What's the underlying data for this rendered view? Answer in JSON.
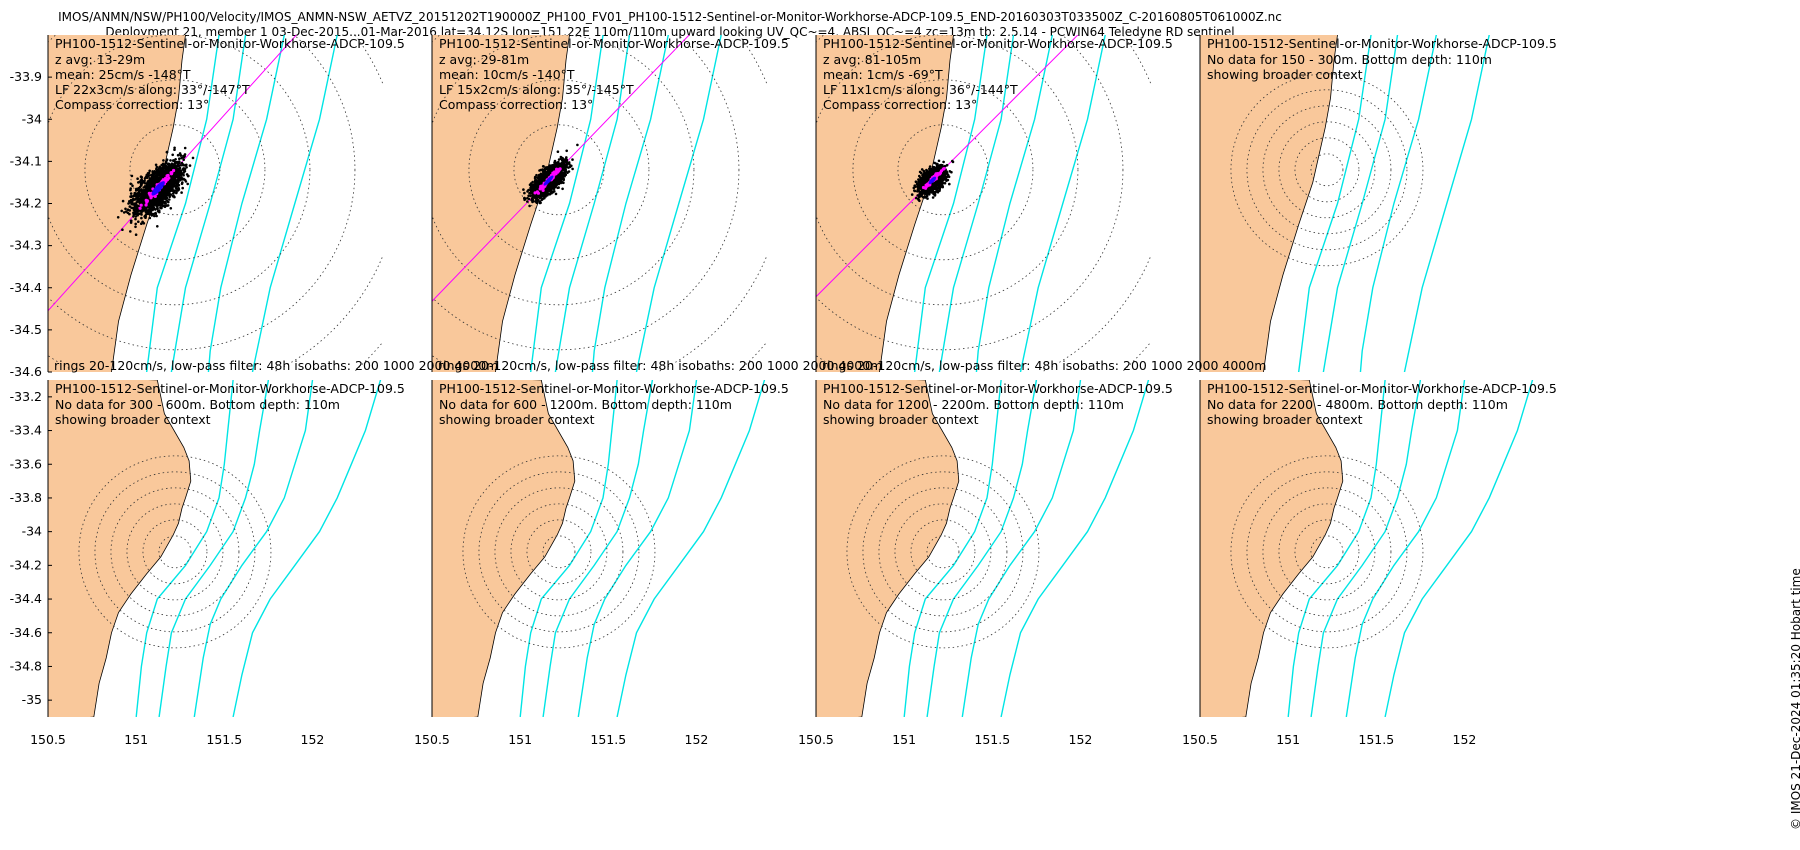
{
  "header": {
    "line1": "IMOS/ANMN/NSW/PH100/Velocity/IMOS_ANMN-NSW_AETVZ_20151202T190000Z_PH100_FV01_PH100-1512-Sentinel-or-Monitor-Workhorse-ADCP-109.5_END-20160303T033500Z_C-20160805T061000Z.nc",
    "line2": "Deployment 21, member 1 03-Dec-2015...01-Mar-2016 lat=34.12S lon=151.22E 110m/110m upward looking UV_QC~=4, ABSI_QC~=4 zc=13m tb: 2.5.14 - PCWIN64 Teledyne RD sentinel"
  },
  "copyright": "© IMOS 21-Dec-2024 01:35:20 Hobart time",
  "colors": {
    "land": "#f9c89b",
    "isobath": "#00e5e5",
    "scatter": "#000000",
    "mean_dots": "#ff00ff",
    "principal_axis": "#ff00ff",
    "ellipse": "#0000ff"
  },
  "chart_data": {
    "type": "scatter",
    "mooring": {
      "lon": 151.22,
      "lat": -34.12
    },
    "x_ticks": [
      "150.5",
      "151",
      "151.5",
      "152"
    ],
    "top_row": {
      "xlim": [
        150.5,
        152.4
      ],
      "ylim": [
        -34.6,
        -33.8
      ],
      "y_ticks": [
        "-33.9",
        "-34",
        "-34.1",
        "-34.2",
        "-34.3",
        "-34.4",
        "-34.5",
        "-34.6"
      ],
      "footer": "rings 20-120cm/s, low-pass filter: 48h isobaths: 200 1000 2000 4000m"
    },
    "bottom_row": {
      "xlim": [
        150.5,
        152.4
      ],
      "ylim": [
        -35.1,
        -33.1
      ],
      "y_ticks": [
        "-33.2",
        "-33.4",
        "-33.6",
        "-33.8",
        "-34",
        "-34.2",
        "-34.4",
        "-34.6",
        "-34.8",
        "-35"
      ]
    },
    "isobaths_m": [
      200,
      1000,
      2000,
      4000
    ],
    "panels": [
      {
        "title": "PH100-1512-Sentinel-or-Monitor-Workhorse-ADCP-109.5",
        "lines": [
          "z avg: 13-29m",
          "mean: 25cm/s -148°T",
          "LF 22x3cm/s along: 33°/-147°T",
          "Compass correction: 13°"
        ],
        "has_data": true,
        "spread": [
          0.3,
          0.055
        ],
        "angle_deg": 48,
        "points": 2200
      },
      {
        "title": "PH100-1512-Sentinel-or-Monitor-Workhorse-ADCP-109.5",
        "lines": [
          "z avg: 29-81m",
          "mean: 10cm/s -140°T",
          "LF 15x2cm/s along: 35°/-145°T",
          "Compass correction: 13°"
        ],
        "has_data": true,
        "spread": [
          0.22,
          0.035
        ],
        "angle_deg": 46,
        "points": 1700
      },
      {
        "title": "PH100-1512-Sentinel-or-Monitor-Workhorse-ADCP-109.5",
        "lines": [
          "z avg: 81-105m",
          "mean: 1cm/s -69°T",
          "LF 11x1cm/s along: 36°/-144°T",
          "Compass correction: 13°"
        ],
        "has_data": true,
        "spread": [
          0.16,
          0.035
        ],
        "angle_deg": 45,
        "points": 1400
      },
      {
        "title": "PH100-1512-Sentinel-or-Monitor-Workhorse-ADCP-109.5",
        "lines": [
          "No data for 150 - 300m. Bottom depth: 110m",
          "showing broader context"
        ],
        "has_data": false
      },
      {
        "title": "PH100-1512-Sentinel-or-Monitor-Workhorse-ADCP-109.5",
        "lines": [
          "No data for 300 - 600m. Bottom depth: 110m",
          "showing broader context"
        ],
        "has_data": false
      },
      {
        "title": "PH100-1512-Sentinel-or-Monitor-Workhorse-ADCP-109.5",
        "lines": [
          "No data for 600 - 1200m. Bottom depth: 110m",
          "showing broader context"
        ],
        "has_data": false
      },
      {
        "title": "PH100-1512-Sentinel-or-Monitor-Workhorse-ADCP-109.5",
        "lines": [
          "No data for 1200 - 2200m. Bottom depth: 110m",
          "showing broader context"
        ],
        "has_data": false
      },
      {
        "title": "PH100-1512-Sentinel-or-Monitor-Workhorse-ADCP-109.5",
        "lines": [
          "No data for 2200 - 4800m. Bottom depth: 110m",
          "showing broader context"
        ],
        "has_data": false
      }
    ]
  }
}
